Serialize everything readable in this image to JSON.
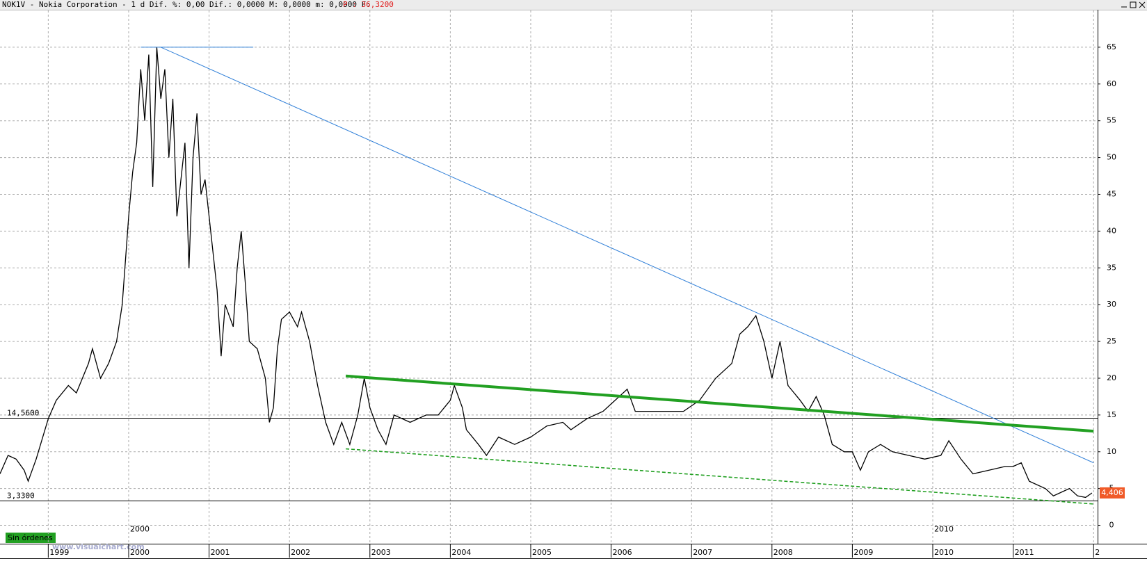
{
  "header": {
    "symbol_info": "NOK1V - Nokia Corporation -  1 d Dif. %: 0,00 Dif.: 0,0000 M: 0,0000 m: 0,0000 F:",
    "price_info": "P : 36,3200"
  },
  "chart_data": {
    "type": "line",
    "x": [
      1998.4,
      1998.5,
      1998.6,
      1998.7,
      1998.75,
      1998.85,
      1999.0,
      1999.1,
      1999.25,
      1999.35,
      1999.5,
      1999.55,
      1999.65,
      1999.75,
      1999.85,
      1999.92,
      2000.0,
      2000.05,
      2000.1,
      2000.15,
      2000.2,
      2000.25,
      2000.3,
      2000.35,
      2000.4,
      2000.45,
      2000.5,
      2000.55,
      2000.6,
      2000.7,
      2000.75,
      2000.8,
      2000.85,
      2000.9,
      2000.95,
      2001.0,
      2001.1,
      2001.15,
      2001.2,
      2001.3,
      2001.35,
      2001.4,
      2001.45,
      2001.5,
      2001.6,
      2001.7,
      2001.75,
      2001.8,
      2001.85,
      2001.9,
      2002.0,
      2002.1,
      2002.15,
      2002.25,
      2002.35,
      2002.45,
      2002.55,
      2002.65,
      2002.75,
      2002.85,
      2002.93,
      2003.0,
      2003.1,
      2003.2,
      2003.3,
      2003.5,
      2003.7,
      2003.85,
      2004.0,
      2004.05,
      2004.15,
      2004.2,
      2004.35,
      2004.45,
      2004.6,
      2004.8,
      2005.0,
      2005.2,
      2005.4,
      2005.5,
      2005.7,
      2005.9,
      2006.0,
      2006.2,
      2006.3,
      2006.5,
      2006.7,
      2006.9,
      2007.1,
      2007.3,
      2007.5,
      2007.6,
      2007.7,
      2007.8,
      2007.9,
      2008.0,
      2008.1,
      2008.2,
      2008.35,
      2008.45,
      2008.55,
      2008.65,
      2008.75,
      2008.9,
      2009.0,
      2009.1,
      2009.2,
      2009.35,
      2009.5,
      2009.7,
      2009.9,
      2010.1,
      2010.2,
      2010.35,
      2010.5,
      2010.7,
      2010.9,
      2011.0,
      2011.1,
      2011.2,
      2011.4,
      2011.5,
      2011.6,
      2011.7,
      2011.8,
      2011.9,
      2011.98
    ],
    "series": [
      {
        "color": "#000000",
        "values": [
          7,
          9.5,
          9,
          7.5,
          6,
          9,
          14.5,
          17,
          19,
          18,
          22,
          24,
          20,
          22,
          25,
          30,
          42,
          48,
          52,
          62,
          55,
          64,
          46,
          65,
          58,
          62,
          50,
          58,
          42,
          52,
          35,
          50,
          56,
          45,
          47,
          42,
          32,
          23,
          30,
          27,
          35,
          40,
          33,
          25,
          24,
          20,
          14,
          16,
          24,
          28,
          29,
          27,
          29,
          25,
          19,
          14,
          11,
          14,
          11,
          15,
          20,
          16,
          13,
          11,
          15,
          14,
          15,
          15,
          17,
          19,
          16,
          13,
          11,
          9.5,
          12,
          11,
          12,
          13.5,
          14,
          13,
          14.5,
          15.5,
          16.5,
          18.5,
          15.5,
          15.5,
          15.5,
          15.5,
          17,
          20,
          22,
          26,
          27,
          28.5,
          25,
          20,
          25,
          19,
          17,
          15.5,
          17.5,
          15,
          11,
          10,
          10,
          7.5,
          10,
          11,
          10,
          9.5,
          9,
          9.5,
          11.5,
          9,
          7,
          7.5,
          8,
          8,
          8.5,
          6,
          5,
          4,
          4.5,
          5,
          4,
          3.8,
          4.4
        ]
      }
    ],
    "xlim": [
      1998.4,
      2012.05
    ],
    "ylim": [
      -2.5,
      70
    ],
    "xticks": [
      1999,
      2000,
      2001,
      2002,
      2003,
      2004,
      2005,
      2006,
      2007,
      2008,
      2009,
      2010,
      2011,
      {
        "value": 2012,
        "label": "2"
      }
    ],
    "yticks": [
      0,
      5,
      10,
      15,
      20,
      25,
      30,
      35,
      40,
      45,
      50,
      55,
      60,
      65
    ],
    "grid": true,
    "reference_lines": [
      {
        "value": 14.56,
        "label": "14,5600"
      },
      {
        "value": 3.33,
        "label": "3,3300"
      }
    ],
    "trendlines": [
      {
        "color": "#2f7fd8",
        "style": "solid",
        "points": [
          [
            2000.4,
            65
          ],
          [
            2012,
            8.5
          ]
        ]
      },
      {
        "color": "#2f7fd8",
        "style": "solid",
        "points": [
          [
            2000.15,
            65
          ],
          [
            2001.55,
            65
          ]
        ]
      },
      {
        "color": "#22a022",
        "style": "thick",
        "points": [
          [
            2002.7,
            20.3
          ],
          [
            2012,
            12.8
          ]
        ]
      },
      {
        "color": "#22a022",
        "style": "dashed",
        "points": [
          [
            2002.7,
            10.4
          ],
          [
            2012,
            2.9
          ]
        ]
      }
    ],
    "last_price": {
      "value": 4.406,
      "label": "4,406"
    },
    "annotations": [
      {
        "text": "2000",
        "x": 2000.0,
        "y": 0
      },
      {
        "text": "2010",
        "x": 2010.0,
        "y": 0
      }
    ]
  },
  "status": "Sin órdenes",
  "watermark": "www.visualchart.com"
}
